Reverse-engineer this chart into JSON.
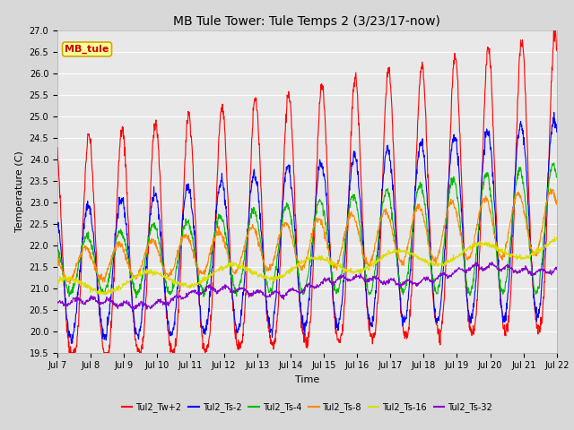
{
  "title": "MB Tule Tower: Tule Temps 2 (3/23/17-now)",
  "xlabel": "Time",
  "ylabel": "Temperature (C)",
  "ylim": [
    19.5,
    27.0
  ],
  "yticks": [
    19.5,
    20.0,
    20.5,
    21.0,
    21.5,
    22.0,
    22.5,
    23.0,
    23.5,
    24.0,
    24.5,
    25.0,
    25.5,
    26.0,
    26.5,
    27.0
  ],
  "xtick_labels": [
    "Jul 7",
    "Jul 8",
    "Jul 9",
    "Jul 10",
    "Jul 11",
    "Jul 12",
    "Jul 13",
    "Jul 14",
    "Jul 15",
    "Jul 16",
    "Jul 17",
    "Jul 18",
    "Jul 19",
    "Jul 20",
    "Jul 21",
    "Jul 22"
  ],
  "series_colors": [
    "#ff0000",
    "#0000ff",
    "#00bb00",
    "#ff8800",
    "#dddd00",
    "#8800cc"
  ],
  "series_labels": [
    "Tul2_Tw+2",
    "Tul2_Ts-2",
    "Tul2_Ts-4",
    "Tul2_Ts-8",
    "Tul2_Ts-16",
    "Tul2_Ts-32"
  ],
  "background_color": "#d8d8d8",
  "plot_bg_color": "#e8e8e8",
  "legend_box_facecolor": "#ffff99",
  "legend_box_edgecolor": "#ccaa00",
  "legend_text_color": "#cc0000",
  "grid_color": "#ffffff",
  "n_points": 1440
}
